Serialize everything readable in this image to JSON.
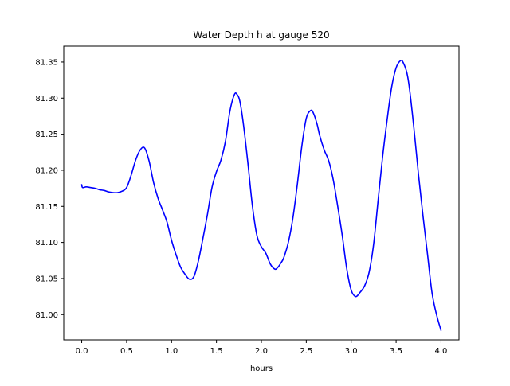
{
  "chart_data": {
    "type": "line",
    "title": "Water Depth h at gauge 520",
    "xlabel": "hours",
    "ylabel": "",
    "xlim": [
      -0.2,
      4.2
    ],
    "ylim": [
      80.965,
      81.372
    ],
    "xticks": [
      0.0,
      0.5,
      1.0,
      1.5,
      2.0,
      2.5,
      3.0,
      3.5,
      4.0
    ],
    "xtick_labels": [
      "0.0",
      "0.5",
      "1.0",
      "1.5",
      "2.0",
      "2.5",
      "3.0",
      "3.5",
      "4.0"
    ],
    "yticks": [
      81.0,
      81.05,
      81.1,
      81.15,
      81.2,
      81.25,
      81.3,
      81.35
    ],
    "ytick_labels": [
      "81.00",
      "81.05",
      "81.10",
      "81.15",
      "81.20",
      "81.25",
      "81.30",
      "81.35"
    ],
    "grid": false,
    "series": [
      {
        "color": "#0000ff",
        "x": [
          0.0,
          0.01,
          0.05,
          0.1,
          0.15,
          0.2,
          0.25,
          0.3,
          0.35,
          0.4,
          0.45,
          0.5,
          0.55,
          0.6,
          0.65,
          0.7,
          0.75,
          0.8,
          0.85,
          0.9,
          0.95,
          1.0,
          1.05,
          1.1,
          1.15,
          1.2,
          1.25,
          1.3,
          1.35,
          1.4,
          1.45,
          1.5,
          1.55,
          1.6,
          1.65,
          1.7,
          1.73,
          1.76,
          1.8,
          1.85,
          1.9,
          1.95,
          2.0,
          2.05,
          2.1,
          2.15,
          2.18,
          2.22,
          2.25,
          2.3,
          2.35,
          2.4,
          2.45,
          2.5,
          2.55,
          2.58,
          2.62,
          2.65,
          2.7,
          2.75,
          2.8,
          2.85,
          2.9,
          2.95,
          3.0,
          3.05,
          3.1,
          3.15,
          3.2,
          3.25,
          3.3,
          3.35,
          3.4,
          3.45,
          3.5,
          3.55,
          3.58,
          3.62,
          3.65,
          3.7,
          3.75,
          3.8,
          3.85,
          3.9,
          3.95,
          4.0
        ],
        "y": [
          81.18,
          81.176,
          81.177,
          81.176,
          81.175,
          81.173,
          81.172,
          81.17,
          81.169,
          81.169,
          81.171,
          81.176,
          81.193,
          81.214,
          81.228,
          81.231,
          81.213,
          81.183,
          81.161,
          81.145,
          81.128,
          81.103,
          81.083,
          81.066,
          81.056,
          81.049,
          81.053,
          81.075,
          81.106,
          81.139,
          81.176,
          81.198,
          81.214,
          81.24,
          81.282,
          81.305,
          81.305,
          81.296,
          81.264,
          81.21,
          81.151,
          81.11,
          81.094,
          81.085,
          81.07,
          81.063,
          81.065,
          81.072,
          81.079,
          81.1,
          81.133,
          81.18,
          81.233,
          81.272,
          81.283,
          81.279,
          81.264,
          81.248,
          81.228,
          81.213,
          81.187,
          81.15,
          81.11,
          81.064,
          81.034,
          81.025,
          81.031,
          81.04,
          81.059,
          81.098,
          81.159,
          81.219,
          81.27,
          81.315,
          81.342,
          81.352,
          81.349,
          81.335,
          81.312,
          81.256,
          81.193,
          81.136,
          81.083,
          81.03,
          81.0,
          80.978
        ]
      }
    ]
  }
}
